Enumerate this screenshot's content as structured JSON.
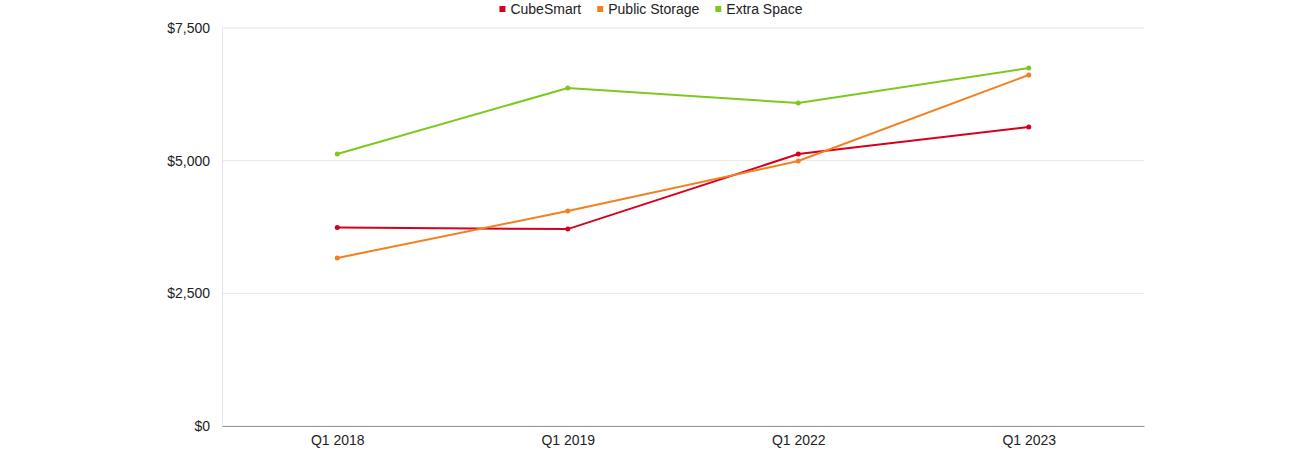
{
  "chart_data": {
    "type": "line",
    "categories": [
      "Q1 2018",
      "Q1 2019",
      "Q1 2022",
      "Q1 2023"
    ],
    "series": [
      {
        "name": "CubeSmart",
        "color": "#d7001c",
        "marker": "circle",
        "values": [
          3740,
          3710,
          5125,
          5634
        ]
      },
      {
        "name": "Public Storage",
        "color": "#f47f20",
        "marker": "circle",
        "values": [
          3166,
          4051,
          4993,
          6614
        ]
      },
      {
        "name": "Extra Space",
        "color": "#7ec81e",
        "marker": "circle",
        "values": [
          5125,
          6369,
          6086,
          6746
        ]
      }
    ],
    "ylim": [
      0,
      7500
    ],
    "yticks": [
      {
        "value": 0,
        "label": "$0"
      },
      {
        "value": 2500,
        "label": "$2,500"
      },
      {
        "value": 5000,
        "label": "$5,000"
      },
      {
        "value": 7500,
        "label": "$7,500"
      }
    ],
    "grid": true,
    "legend": "top"
  }
}
